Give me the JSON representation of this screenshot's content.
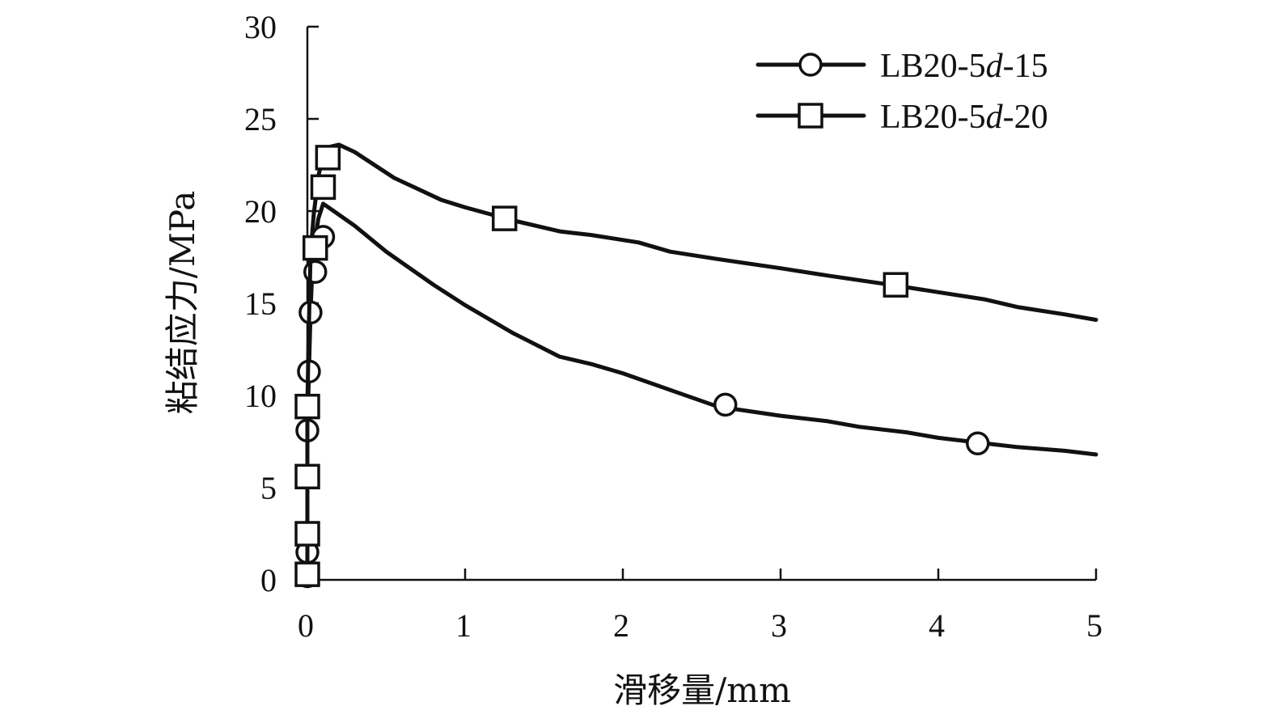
{
  "chart_data": {
    "type": "line",
    "title": "",
    "xlabel": "滑移量/mm",
    "ylabel": "粘结应力/MPa",
    "xlim": [
      0,
      5
    ],
    "ylim": [
      0,
      30
    ],
    "xticks": [
      0,
      1,
      2,
      3,
      4,
      5
    ],
    "yticks": [
      0,
      5,
      10,
      15,
      20,
      25,
      30
    ],
    "xtick_labels": [
      "0",
      "1",
      "2",
      "3",
      "4",
      "5"
    ],
    "ytick_labels": [
      "0",
      "5",
      "10",
      "15",
      "20",
      "25",
      "30"
    ],
    "grid": false,
    "legend_position": "top-right",
    "series": [
      {
        "name_parts": [
          "LB20-5",
          "d",
          "-15"
        ],
        "marker": "circle",
        "x": [
          0,
          0,
          0,
          0.01,
          0.02,
          0.03,
          0.05,
          0.07,
          0.1,
          0.15,
          0.3,
          0.5,
          0.8,
          1.0,
          1.3,
          1.6,
          1.8,
          2.0,
          2.3,
          2.6,
          3.0,
          3.3,
          3.5,
          3.8,
          4.0,
          4.2,
          4.5,
          4.8,
          5.0
        ],
        "y": [
          0,
          1.5,
          8,
          11.3,
          14.5,
          16.7,
          18.5,
          19.6,
          20.4,
          20.1,
          19.2,
          17.8,
          16.0,
          14.9,
          13.4,
          12.1,
          11.7,
          11.2,
          10.3,
          9.4,
          8.9,
          8.6,
          8.3,
          8.0,
          7.7,
          7.5,
          7.2,
          7.0,
          6.8
        ],
        "marker_x": [
          0,
          0,
          0,
          0.01,
          0.02,
          0.05,
          0.1,
          2.65,
          4.25
        ],
        "marker_y": [
          0.2,
          1.5,
          8.1,
          11.3,
          14.5,
          16.7,
          18.6,
          9.5,
          7.4
        ]
      },
      {
        "name_parts": [
          "LB20-5",
          "d",
          "-20"
        ],
        "marker": "square",
        "x": [
          0,
          0,
          0,
          0.01,
          0.02,
          0.04,
          0.07,
          0.1,
          0.15,
          0.2,
          0.3,
          0.55,
          0.85,
          1.0,
          1.3,
          1.6,
          1.8,
          2.1,
          2.3,
          2.6,
          3.0,
          3.3,
          3.7,
          4.0,
          4.3,
          4.5,
          4.8,
          5.0
        ],
        "y": [
          0,
          2.5,
          9.5,
          13.8,
          17.6,
          19.8,
          21.9,
          23.0,
          23.5,
          23.6,
          23.2,
          21.8,
          20.6,
          20.2,
          19.5,
          18.9,
          18.7,
          18.3,
          17.8,
          17.4,
          16.9,
          16.5,
          16.0,
          15.6,
          15.2,
          14.8,
          14.4,
          14.1
        ],
        "marker_x": [
          0,
          0,
          0,
          0,
          0.05,
          0.1,
          0.13,
          1.25,
          3.73
        ],
        "marker_y": [
          0.3,
          2.5,
          5.6,
          9.4,
          18.0,
          21.3,
          22.9,
          19.6,
          16.0
        ]
      }
    ]
  }
}
